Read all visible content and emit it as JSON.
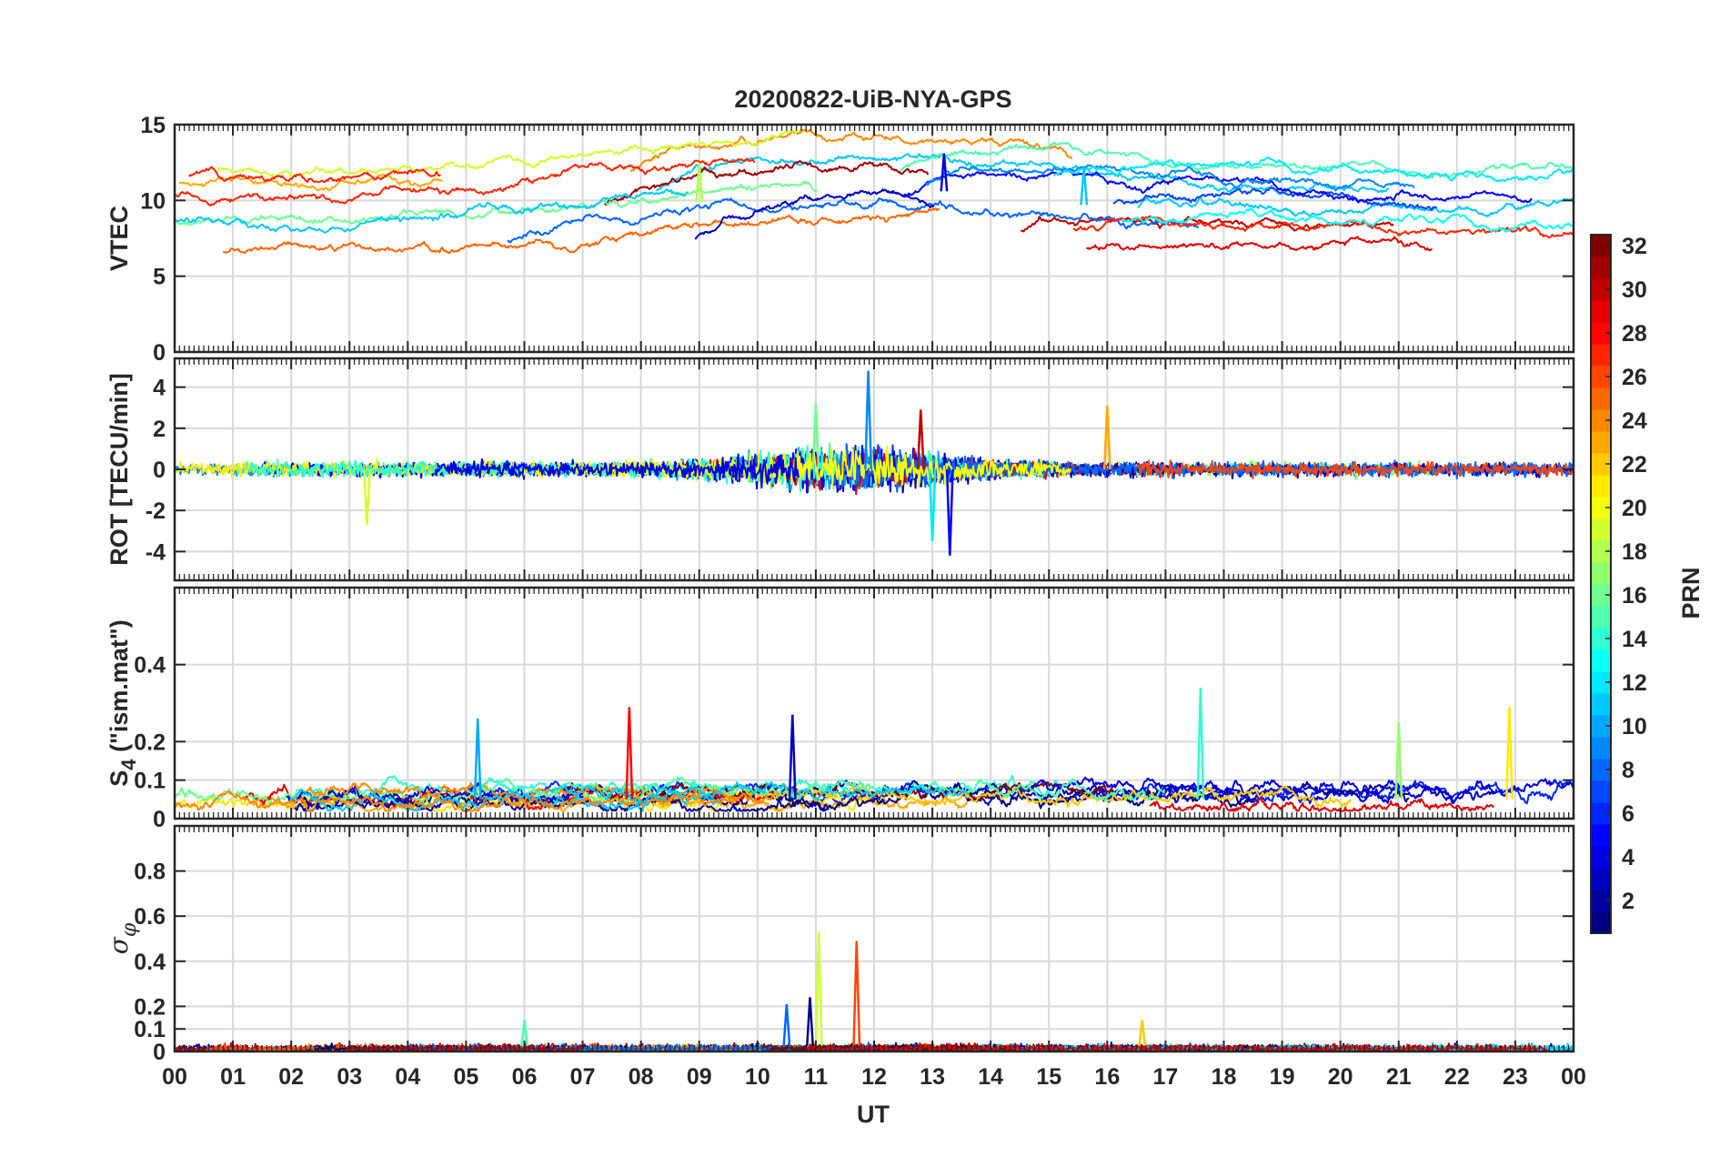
{
  "chart_data": {
    "type": "line",
    "title": "20200822-UiB-NYA-GPS",
    "xlabel": "UT",
    "x_ticks": [
      "00",
      "01",
      "02",
      "03",
      "04",
      "05",
      "06",
      "07",
      "08",
      "09",
      "10",
      "11",
      "12",
      "13",
      "14",
      "15",
      "16",
      "17",
      "18",
      "19",
      "20",
      "21",
      "22",
      "23",
      "00"
    ],
    "xlim_hours": [
      0,
      24
    ],
    "colorbar": {
      "label": "PRN",
      "colormap": "jet",
      "range": [
        1,
        32
      ],
      "ticks": [
        "2",
        "4",
        "6",
        "8",
        "10",
        "12",
        "14",
        "16",
        "18",
        "20",
        "22",
        "24",
        "26",
        "28",
        "30",
        "32"
      ]
    },
    "panels": [
      {
        "id": "vtec",
        "ylabel": "VTEC",
        "ylim": [
          0,
          15
        ],
        "yticks": [
          "0",
          "5",
          "10",
          "15"
        ],
        "typical_range": [
          4,
          13
        ],
        "peaks": [
          {
            "hour": 13.2,
            "value": 13.1
          },
          {
            "hour": 15.6,
            "value": 12.2
          },
          {
            "hour": 9.0,
            "value": 12.4
          }
        ]
      },
      {
        "id": "rot",
        "ylabel": "ROT [TECU/min]",
        "ylim": [
          -5.4,
          5.4
        ],
        "yticks": [
          "-4",
          "-2",
          "0",
          "2",
          "4"
        ],
        "typical_range": [
          -0.8,
          0.8
        ],
        "peaks": [
          {
            "hour": 11.9,
            "value": 4.8
          },
          {
            "hour": 11.0,
            "value": 3.2
          },
          {
            "hour": 16.0,
            "value": 3.1
          },
          {
            "hour": 12.8,
            "value": 2.9
          },
          {
            "hour": 13.3,
            "value": -4.2
          },
          {
            "hour": 13.0,
            "value": -3.5
          },
          {
            "hour": 3.3,
            "value": -2.7
          }
        ]
      },
      {
        "id": "s4",
        "ylabel_main": "S",
        "ylabel_sub": "4",
        "ylabel_rest": " (\"ism.mat\")",
        "ylim": [
          0,
          0.6
        ],
        "yticks": [
          "0",
          "0.1",
          "0.2",
          "0.4"
        ],
        "typical_range": [
          0.03,
          0.15
        ],
        "peaks": [
          {
            "hour": 17.6,
            "value": 0.34
          },
          {
            "hour": 22.9,
            "value": 0.29
          },
          {
            "hour": 7.8,
            "value": 0.29
          },
          {
            "hour": 10.6,
            "value": 0.27
          },
          {
            "hour": 5.2,
            "value": 0.26
          },
          {
            "hour": 21.0,
            "value": 0.25
          }
        ]
      },
      {
        "id": "sigma_phi",
        "ylabel_main": "σ",
        "ylabel_sub": "φ",
        "ylim": [
          0,
          1
        ],
        "yticks": [
          "0",
          "0.1",
          "0.2",
          "0.4",
          "0.6",
          "0.8"
        ],
        "typical_range": [
          0.005,
          0.04
        ],
        "peaks": [
          {
            "hour": 11.05,
            "value": 0.53
          },
          {
            "hour": 11.7,
            "value": 0.49
          },
          {
            "hour": 10.9,
            "value": 0.24
          },
          {
            "hour": 10.5,
            "value": 0.21
          },
          {
            "hour": 6.0,
            "value": 0.14
          },
          {
            "hour": 16.6,
            "value": 0.14
          }
        ]
      }
    ]
  }
}
